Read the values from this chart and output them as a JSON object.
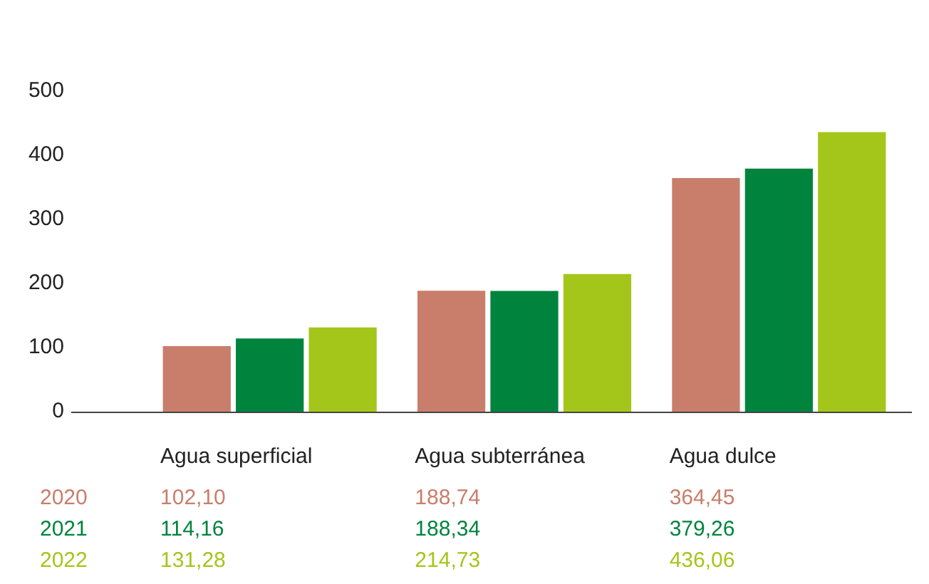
{
  "chart_data": {
    "type": "bar",
    "categories": [
      "Agua superficial",
      "Agua subterránea",
      "Agua dulce"
    ],
    "series": [
      {
        "name": "2020",
        "color": "#c97e6b",
        "values": [
          102.1,
          188.74,
          364.45
        ],
        "value_labels": [
          "102,10",
          "188,74",
          "364,45"
        ]
      },
      {
        "name": "2021",
        "color": "#00843d",
        "values": [
          114.16,
          188.34,
          379.26
        ],
        "value_labels": [
          "114,16",
          "188,34",
          "379,26"
        ]
      },
      {
        "name": "2022",
        "color": "#a4c61a",
        "values": [
          131.28,
          214.73,
          436.06
        ],
        "value_labels": [
          "131,28",
          "214,73",
          "436,06"
        ]
      }
    ],
    "ylim": [
      0,
      500
    ],
    "yticks": [
      0,
      100,
      200,
      300,
      400,
      500
    ],
    "grid": false
  }
}
